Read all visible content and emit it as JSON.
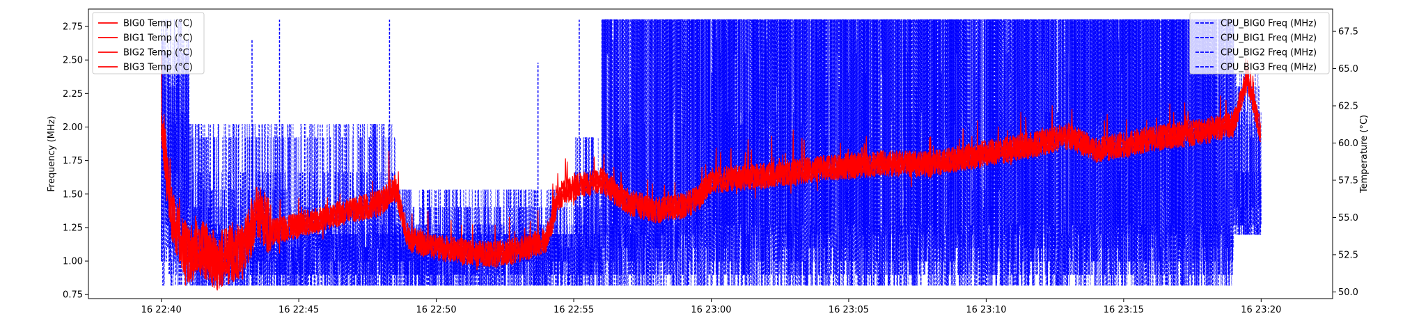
{
  "chart_data": {
    "type": "line",
    "title": "",
    "xlabel": "",
    "ylabel_left": "Frequency (MHz)",
    "ylabel_right": "Temperature (°C)",
    "x_range": [
      "16 22:40",
      "16 23:20"
    ],
    "x_ticks": [
      "16 22:40",
      "16 22:45",
      "16 22:50",
      "16 22:55",
      "16 23:00",
      "16 23:05",
      "16 23:10",
      "16 23:15",
      "16 23:20"
    ],
    "y_left_range": [
      0.72,
      2.88
    ],
    "y_left_ticks": [
      "0.75",
      "1.00",
      "1.25",
      "1.50",
      "1.75",
      "2.00",
      "2.25",
      "2.50",
      "2.75"
    ],
    "y_right_range": [
      49.55,
      69.0
    ],
    "y_right_ticks": [
      "50.0",
      "52.5",
      "55.0",
      "57.5",
      "60.0",
      "62.5",
      "65.0",
      "67.5"
    ],
    "grid": false,
    "legend_left": {
      "placement": "top-left",
      "entries": [
        {
          "label": "BIG0 Temp (°C)",
          "color": "#ff0000"
        },
        {
          "label": "BIG1 Temp (°C)",
          "color": "#ff0000"
        },
        {
          "label": "BIG2 Temp (°C)",
          "color": "#ff0000"
        },
        {
          "label": "BIG3 Temp (°C)",
          "color": "#ff0000"
        }
      ]
    },
    "legend_right": {
      "placement": "top-right",
      "entries": [
        {
          "label": "CPU_BIG0 Freq (MHz)",
          "color": "#0000ff"
        },
        {
          "label": "CPU_BIG1 Freq (MHz)",
          "color": "#0000ff"
        },
        {
          "label": "CPU_BIG2 Freq (MHz)",
          "color": "#0000ff"
        },
        {
          "label": "CPU_BIG3 Freq (MHz)",
          "color": "#0000ff"
        }
      ]
    },
    "temp_trend": {
      "x_minutes": [
        0,
        0.3,
        0.6,
        1.0,
        1.5,
        2.0,
        2.5,
        3.0,
        3.5,
        4.0,
        5.0,
        6.0,
        7.0,
        8.0,
        8.5,
        9.0,
        10.0,
        11.0,
        12.0,
        13.0,
        14.0,
        14.5,
        15.0,
        16.0,
        17.0,
        18.0,
        19.0,
        19.5,
        20.0,
        22.0,
        24.0,
        26.0,
        28.0,
        30.0,
        32.0,
        33.0,
        34.0,
        36.0,
        38.0,
        39.0,
        39.5,
        40.0
      ],
      "y_celsius": [
        62.0,
        56.0,
        54.0,
        52.5,
        53.0,
        52.0,
        52.5,
        52.8,
        55.5,
        54.0,
        54.5,
        55.0,
        55.5,
        56.0,
        57.0,
        53.5,
        53.0,
        52.7,
        52.5,
        52.8,
        53.5,
        56.5,
        57.0,
        57.5,
        56.0,
        55.5,
        55.8,
        56.2,
        57.5,
        57.8,
        58.3,
        58.6,
        58.6,
        59.3,
        60.0,
        60.5,
        59.5,
        60.3,
        60.8,
        61.3,
        64.5,
        60.5
      ],
      "noise_amplitude_celsius": 0.9
    },
    "freq_levels_mhz": [
      0.82,
      0.9,
      1.0,
      1.1,
      1.2,
      1.27,
      1.4,
      1.53,
      1.66,
      1.92,
      2.02,
      2.11,
      2.3,
      2.4,
      2.55,
      2.65,
      2.8
    ],
    "freq_segments": [
      {
        "x_start_min": 0.0,
        "x_end_min": 1.0,
        "low": 0.82,
        "high": 2.8
      },
      {
        "x_start_min": 1.0,
        "x_end_min": 8.5,
        "low": 0.82,
        "high": 2.02
      },
      {
        "x_start_min": 8.5,
        "x_end_min": 15.0,
        "low": 0.82,
        "high": 1.53
      },
      {
        "x_start_min": 15.0,
        "x_end_min": 16.0,
        "low": 0.82,
        "high": 1.92
      },
      {
        "x_start_min": 16.0,
        "x_end_min": 39.0,
        "low": 0.82,
        "high": 2.8
      },
      {
        "x_start_min": 39.0,
        "x_end_min": 40.0,
        "low": 1.2,
        "high": 2.4
      }
    ],
    "freq_spikes": [
      {
        "x_min": 3.3,
        "y": 2.65
      },
      {
        "x_min": 4.3,
        "y": 2.8
      },
      {
        "x_min": 8.3,
        "y": 2.8
      },
      {
        "x_min": 13.7,
        "y": 2.48
      },
      {
        "x_min": 15.2,
        "y": 2.8
      },
      {
        "x_min": 31.0,
        "y": 1.3
      }
    ]
  }
}
